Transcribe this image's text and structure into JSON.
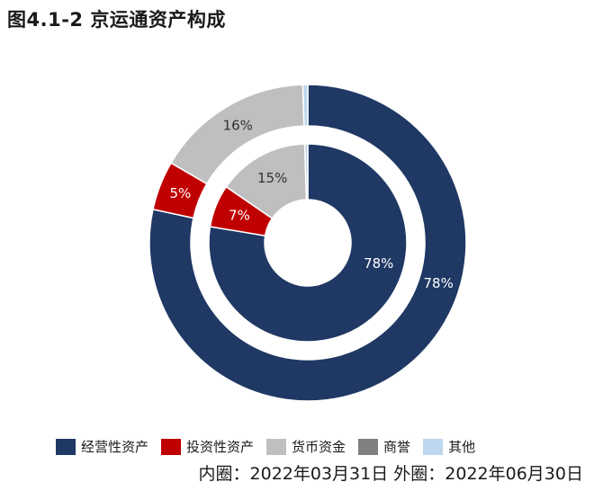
{
  "title": "图4.1-2 京运通资产构成",
  "footnote": "内圈：2022年03月31日 外圈：2022年06月30日",
  "chart_data": {
    "type": "pie",
    "variant": "double-donut",
    "categories": [
      "经营性资产",
      "投资性资产",
      "货币资金",
      "商誉",
      "其他"
    ],
    "colors": [
      "#1F3864",
      "#C00000",
      "#BFBFBF",
      "#808080",
      "#BDD7EE"
    ],
    "series": [
      {
        "ring": "inner",
        "date": "2022年03月31日",
        "values": [
          78,
          7,
          15,
          0,
          0.5
        ],
        "labels": [
          "78%",
          "7%",
          "15%",
          "",
          ""
        ]
      },
      {
        "ring": "outer",
        "date": "2022年06月30日",
        "values": [
          78,
          5,
          16,
          0,
          0.5
        ],
        "labels": [
          "78%",
          "5%",
          "16%",
          "",
          ""
        ]
      }
    ],
    "legend_position": "bottom"
  }
}
